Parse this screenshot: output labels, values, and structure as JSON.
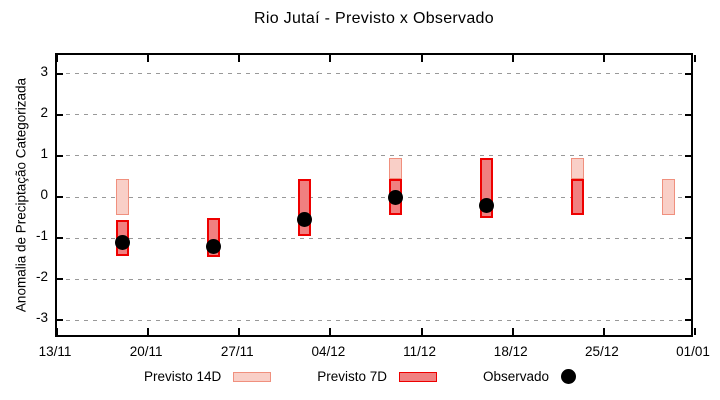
{
  "title": "Rio Jutaí - Previsto x Observado",
  "y_axis": {
    "label": "Anomalia de Preciptação Categorizada",
    "ticks": [
      3,
      2,
      1,
      0,
      -1,
      -2,
      -3
    ]
  },
  "x_axis": {
    "ticks": [
      "13/11",
      "20/11",
      "27/11",
      "04/12",
      "11/12",
      "18/12",
      "25/12",
      "01/01"
    ]
  },
  "legend": [
    {
      "label": "Previsto 14D",
      "type": "box",
      "fill": "#f9cfc7",
      "border": "#f0907e"
    },
    {
      "label": "Previsto 7D",
      "type": "box",
      "fill": "#f08080",
      "border": "#ee0000"
    },
    {
      "label": "Observado",
      "type": "dot",
      "fill": "#000000"
    }
  ],
  "colors": {
    "previsto_14d_fill": "#f9cfc7",
    "previsto_14d_border": "#f0907e",
    "previsto_7d_fill": "#f08080",
    "previsto_7d_border": "#ee0000",
    "observado": "#000000",
    "grid": "#999999",
    "axis": "#000000"
  },
  "chart_data": {
    "type": "bar",
    "subtype": "range-bars-with-scatter",
    "title": "Rio Jutaí - Previsto x Observado",
    "xlabel": "",
    "ylabel": "Anomalia de Preciptação Categorizada",
    "ylim": [
      -3.5,
      3.5
    ],
    "grid": "dashed horizontal at integers",
    "legend_position": "below plot",
    "x_tick_labels": [
      "13/11",
      "20/11",
      "27/11",
      "04/12",
      "11/12",
      "18/12",
      "25/12",
      "01/01"
    ],
    "x_tick_offsets": [
      0,
      7,
      14,
      21,
      28,
      35,
      42,
      49
    ],
    "x_span_days": 49,
    "categories": [
      "18/11",
      "25/11",
      "02/12",
      "09/12",
      "16/12",
      "23/12",
      "30/12"
    ],
    "clusters": [
      {
        "date": "18/11",
        "day_offset": 5,
        "previsto_14d": [
          -0.45,
          0.45
        ],
        "previsto_7d": [
          -1.45,
          -0.55
        ],
        "observado": -1.1
      },
      {
        "date": "25/11",
        "day_offset": 12,
        "previsto_14d": null,
        "previsto_7d": [
          -1.45,
          -0.5
        ],
        "observado": -1.2
      },
      {
        "date": "02/12",
        "day_offset": 19,
        "previsto_14d": null,
        "previsto_7d": [
          -0.95,
          0.45
        ],
        "observado": -0.55
      },
      {
        "date": "09/12",
        "day_offset": 26,
        "previsto_14d": [
          0.45,
          0.95
        ],
        "previsto_7d": [
          -0.45,
          0.45
        ],
        "observado": 0.0
      },
      {
        "date": "16/12",
        "day_offset": 33,
        "previsto_14d": null,
        "previsto_7d": [
          -0.5,
          0.95
        ],
        "observado": -0.2
      },
      {
        "date": "23/12",
        "day_offset": 40,
        "previsto_14d": [
          0.45,
          0.95
        ],
        "previsto_7d": [
          -0.45,
          0.45
        ],
        "observado": null
      },
      {
        "date": "30/12",
        "day_offset": 47,
        "previsto_14d": [
          -0.45,
          0.45
        ],
        "previsto_7d": null,
        "observado": null
      }
    ]
  }
}
